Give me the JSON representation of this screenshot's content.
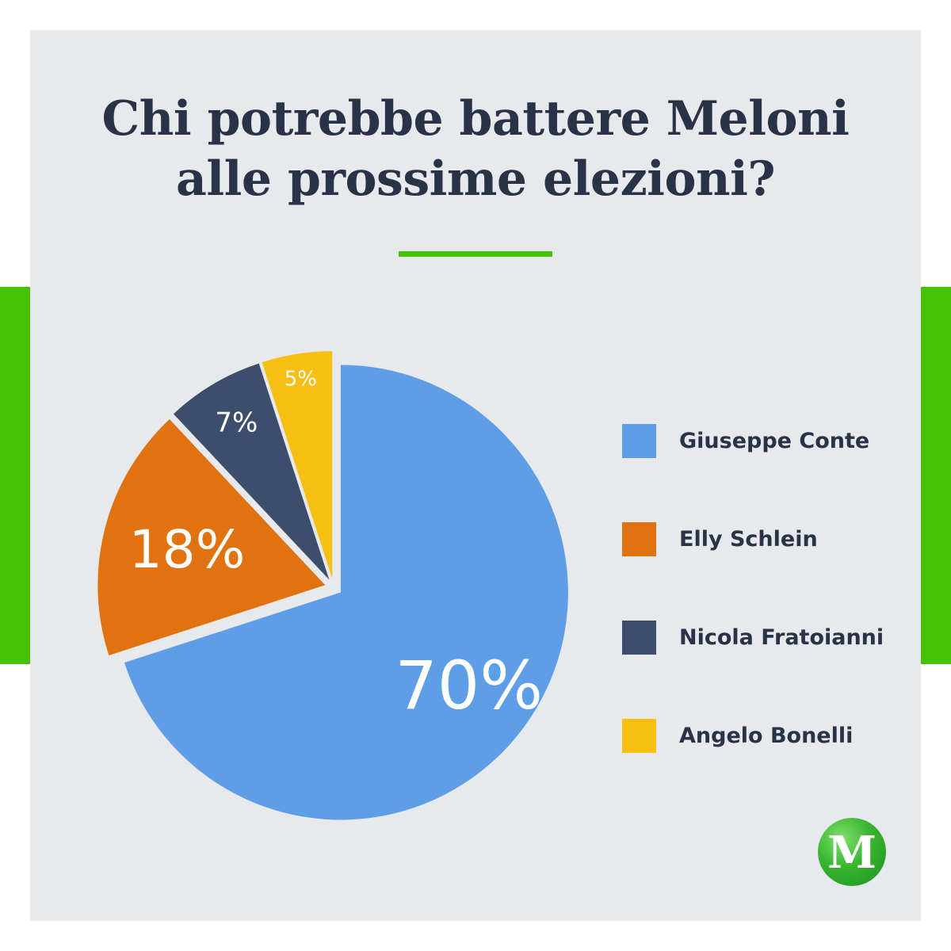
{
  "title_lines": [
    "Chi potrebbe battere Meloni",
    "alle prossime elezioni?"
  ],
  "colors": {
    "background": "#e8e9ed",
    "accent_green": "#46c307",
    "title_text": "#283348",
    "legend_text": "#283348"
  },
  "chart_data": {
    "type": "pie",
    "title": "Chi potrebbe battere Meloni alle prossime elezioni?",
    "start": "12 o'clock, clockwise",
    "legend_position": "right",
    "slices": [
      {
        "label": "Giuseppe Conte",
        "value": 70,
        "value_label": "70%",
        "color": "#5e9ee6"
      },
      {
        "label": "Elly Schlein",
        "value": 18,
        "value_label": "18%",
        "color": "#e07210"
      },
      {
        "label": "Nicola Fratoianni",
        "value": 7,
        "value_label": "7%",
        "color": "#3c4e6b"
      },
      {
        "label": "Angelo Bonelli",
        "value": 5,
        "value_label": "5%",
        "color": "#f7bf12"
      }
    ]
  },
  "legend": {
    "items": [
      {
        "label": "Giuseppe Conte",
        "color": "#5e9ee6"
      },
      {
        "label": "Elly Schlein",
        "color": "#e07210"
      },
      {
        "label": "Nicola Fratoianni",
        "color": "#3c4e6b"
      },
      {
        "label": "Angelo Bonelli",
        "color": "#f7bf12"
      }
    ]
  },
  "logo": {
    "letter": "M",
    "icon": "m-circle-logo-icon"
  }
}
